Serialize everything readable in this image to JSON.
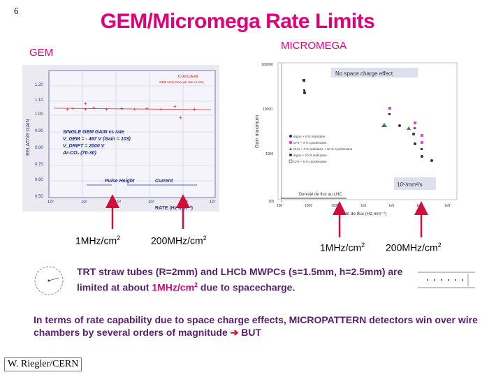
{
  "slide_number": "6",
  "title": "GEM/Micromega Rate Limits",
  "labels": {
    "gem": "GEM",
    "micromega": "MICROMEGA"
  },
  "gem_plot": {
    "ylabel": "RELATIVE GAIN",
    "xlabel": "RATE (Hz mm⁻²)",
    "legend_top": "10·Ar/Caledit",
    "legend_sub": "GEM entry Gain var rate Ar-CO₂",
    "info_line1": "SINGLE GEM GAIN vs rate",
    "info_line2": "V_GEM = - 467 V  (Gain = 103)",
    "info_line3": "V_DRIFT = 2000 V",
    "info_line4": "Ar-CO₂ (70-30)",
    "pulse_label": "Pulse Height",
    "current_label": "Current",
    "y_ticks": [
      "1.20",
      "1.10",
      "1.00",
      "0.90",
      "0.80",
      "0.70",
      "0.60",
      "0.50"
    ],
    "x_ticks": [
      "10²",
      "10³",
      "10⁴",
      "10⁵",
      "10⁶",
      "10⁷"
    ]
  },
  "micromega_plot": {
    "ylabel": "Gain maximum",
    "xlabel": "Densité de flux (Hz.mm⁻²)",
    "no_space_charge": "No space charge effect",
    "lhc_flux": "Densité de flux au LHC",
    "flux_box": "10⁶/mm²/s",
    "y_ticks": [
      "100000",
      "10000",
      "1000",
      "100"
    ],
    "x_ticks": [
      "100",
      "1000",
      "10000",
      "1e5",
      "1e6",
      "1e7",
      "1e8"
    ],
    "legend": [
      "argon + 5 % isobutane",
      "CF4 + 4 % cyclohexane",
      "CH4 + 4 % isobutane + 16 % cyclohexane",
      "argon + 10 % isobutane",
      "CF4 + 6 % cyclohexane"
    ]
  },
  "rate_labels": [
    "1MHz/cm",
    "200MHz/cm",
    "1MHz/cm",
    "200MHz/cm"
  ],
  "rate_superscript": "2",
  "trt_text_a": "TRT straw tubes (R=2mm) and LHCb MWPCs (s=1.5mm, h=2.5mm) are limited at about ",
  "trt_highlight": "1MHz/cm",
  "trt_highlight_sup": "2",
  "trt_text_b": " due to spacecharge.",
  "conclusion_a": "In terms of rate capability due to space charge effects, MICROPATTERN detectors win over wire chambers by several orders of magnitude ",
  "conclusion_arrow": "➔",
  "conclusion_b": " BUT",
  "author": "W. Riegler/CERN",
  "colors": {
    "title": "#e0007a",
    "body_text": "#5a1e6e",
    "arrow": "#d0103a"
  }
}
